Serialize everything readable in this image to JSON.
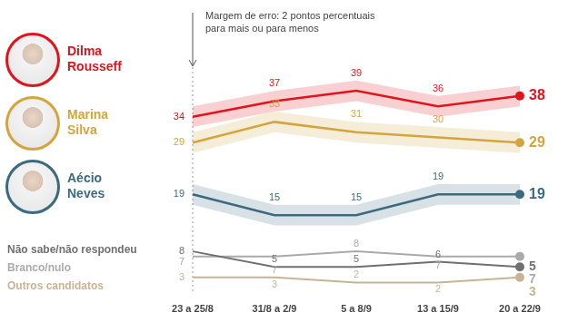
{
  "chart_data": {
    "type": "line",
    "annotations": [
      "Margem de erro: 2 pontos percentuais para mais ou para menos"
    ],
    "categories": [
      "23 a 25/8",
      "31/8 a 2/9",
      "5 a 8/9",
      "13 a 15/9",
      "20 a 22/9"
    ],
    "series": [
      {
        "name": "Dilma Rousseff",
        "color": "#e2141b",
        "values": [
          34,
          37,
          39,
          36,
          38
        ],
        "errors": [
          2,
          2,
          2,
          2,
          2
        ]
      },
      {
        "name": "Marina Silva",
        "color": "#d4a53c",
        "values": [
          29,
          33,
          31,
          30,
          29
        ],
        "errors": [
          2,
          2,
          2,
          2,
          2
        ]
      },
      {
        "name": "Aécio Neves",
        "color": "#3b6a7e",
        "values": [
          19,
          15,
          15,
          19,
          19
        ],
        "errors": [
          2,
          2,
          2,
          2,
          2
        ]
      },
      {
        "name": "Não sabe/não respondeu",
        "color": "#707070",
        "values": [
          8,
          5,
          5,
          6,
          5
        ]
      },
      {
        "name": "Branco/nulo",
        "color": "#aaaaaa",
        "values": [
          7,
          7,
          8,
          7,
          7
        ]
      },
      {
        "name": "Outros candidatos",
        "color": "#c9b394",
        "values": [
          3,
          3,
          2,
          2,
          3
        ]
      }
    ],
    "ylim": [
      0,
      42
    ],
    "grid": false,
    "data_labels": true,
    "tick_labels": "x"
  }
}
